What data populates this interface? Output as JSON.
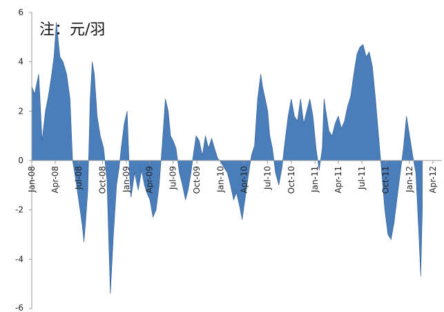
{
  "chart_data": {
    "type": "area",
    "title": "",
    "annotation": "注：元/羽",
    "xlabel": "",
    "ylabel": "",
    "ylim": [
      -6,
      6
    ],
    "yticks": [
      "6",
      "4",
      "2",
      "0",
      "-2",
      "-4",
      "-6"
    ],
    "xlim": [
      "2008-01",
      "2012-05"
    ],
    "xticks": [
      "Jan-08",
      "Apr-08",
      "Jul-08",
      "Oct-08",
      "Jan-09",
      "Apr-09",
      "Jul-09",
      "Oct-09",
      "Jan-10",
      "Apr-10",
      "Jul-10",
      "Oct-10",
      "Jan-11",
      "Apr-11",
      "Jul-11",
      "Oct-11",
      "Jan-12",
      "Apr-12"
    ],
    "grid": false,
    "legend": "none",
    "colors": {
      "fill": "#4a7ebb",
      "stroke": "#2f5a8f",
      "axis": "#999999"
    },
    "series": [
      {
        "x": [
          "2008-01-01",
          "2008-01-12",
          "2008-01-28",
          "2008-02-10",
          "2008-02-23",
          "2008-03-05",
          "2008-03-17",
          "2008-03-27",
          "2008-04-05",
          "2008-04-12",
          "2008-04-19",
          "2008-05-01",
          "2008-05-15",
          "2008-05-28",
          "2008-06-07",
          "2008-06-15",
          "2008-06-22",
          "2008-06-29",
          "2008-07-06",
          "2008-07-14",
          "2008-07-21",
          "2008-07-28",
          "2008-08-05",
          "2008-08-14",
          "2008-08-22",
          "2008-08-30",
          "2008-09-10",
          "2008-09-22",
          "2008-10-05",
          "2008-10-18",
          "2008-10-31",
          "2008-11-12",
          "2008-11-24",
          "2008-12-04",
          "2008-12-12",
          "2008-12-24",
          "2009-01-04",
          "2009-01-13",
          "2009-01-19",
          "2009-02-02",
          "2009-02-16",
          "2009-03-01",
          "2009-03-12",
          "2009-03-21",
          "2009-04-02",
          "2009-04-14",
          "2009-04-26",
          "2009-05-08",
          "2009-05-19",
          "2009-06-01",
          "2009-06-12",
          "2009-06-21",
          "2009-07-01",
          "2009-07-12",
          "2009-07-25",
          "2009-08-06",
          "2009-08-18",
          "2009-08-28",
          "2009-09-08",
          "2009-09-18",
          "2009-09-28",
          "2009-10-10",
          "2009-10-22",
          "2009-11-03",
          "2009-11-15",
          "2009-11-27",
          "2009-12-08",
          "2009-12-20",
          "2010-01-03",
          "2010-01-15",
          "2010-01-27",
          "2010-02-08",
          "2010-02-20",
          "2010-03-03",
          "2010-03-14",
          "2010-03-25",
          "2010-04-06",
          "2010-04-18",
          "2010-04-30",
          "2010-05-12",
          "2010-05-24",
          "2010-06-05",
          "2010-06-12",
          "2010-06-22",
          "2010-07-02",
          "2010-07-10",
          "2010-07-20",
          "2010-08-01",
          "2010-08-14",
          "2010-08-26",
          "2010-09-07",
          "2010-09-19",
          "2010-10-01",
          "2010-10-13",
          "2010-10-25",
          "2010-11-06",
          "2010-11-18",
          "2010-11-30",
          "2010-12-12",
          "2010-12-24",
          "2011-01-05",
          "2011-01-17",
          "2011-01-29",
          "2011-02-05",
          "2011-02-12",
          "2011-02-24",
          "2011-03-08",
          "2011-03-20",
          "2011-04-01",
          "2011-04-13",
          "2011-04-25",
          "2011-05-07",
          "2011-05-19",
          "2011-05-31",
          "2011-06-12",
          "2011-06-24",
          "2011-07-06",
          "2011-07-18",
          "2011-07-30",
          "2011-08-11",
          "2011-08-23",
          "2011-09-04",
          "2011-09-16",
          "2011-09-28",
          "2011-10-10",
          "2011-10-22",
          "2011-11-03",
          "2011-11-15",
          "2011-11-27",
          "2011-12-09",
          "2011-12-21",
          "2012-01-02",
          "2012-01-14",
          "2012-01-26",
          "2012-02-06",
          "2012-02-14",
          "2012-02-20"
        ],
        "values": [
          3.0,
          2.7,
          3.5,
          0.8,
          2.0,
          2.6,
          3.4,
          4.2,
          5.6,
          4.9,
          4.2,
          4.0,
          3.5,
          2.5,
          0.0,
          -0.5,
          -1.0,
          -1.5,
          -2.0,
          -2.6,
          -3.3,
          -2.4,
          -1.2,
          2.5,
          4.0,
          3.5,
          1.8,
          1.0,
          0.5,
          -0.8,
          -5.4,
          -3.0,
          -1.0,
          -0.3,
          0.5,
          1.5,
          2.0,
          -0.5,
          -1.5,
          -0.5,
          -1.2,
          -0.4,
          -1.0,
          -1.3,
          -1.6,
          -2.3,
          -2.0,
          -1.0,
          0.5,
          2.5,
          2.0,
          1.0,
          0.8,
          0.5,
          -0.5,
          -1.0,
          -1.6,
          -1.2,
          -0.5,
          0.3,
          1.0,
          0.8,
          0.2,
          1.0,
          0.5,
          0.9,
          0.5,
          0.1,
          -0.1,
          -0.3,
          -0.5,
          -1.0,
          -1.6,
          -1.3,
          -1.8,
          -2.4,
          -1.5,
          -0.6,
          0.2,
          0.6,
          2.5,
          3.5,
          3.0,
          2.5,
          2.0,
          1.0,
          0.5,
          -0.5,
          -1.0,
          -0.3,
          0.8,
          1.8,
          2.5,
          1.8,
          1.6,
          2.5,
          1.5,
          2.0,
          2.5,
          1.8,
          0.5,
          -0.4,
          0.5,
          2.5,
          2.0,
          1.2,
          1.0,
          1.5,
          1.8,
          1.3,
          1.6,
          2.2,
          2.6,
          3.5,
          4.3,
          4.6,
          4.7,
          4.2,
          4.4,
          3.8,
          2.5,
          1.0,
          -0.5,
          -2.0,
          -3.0,
          -3.2,
          -2.5,
          -1.5,
          -0.5,
          0.5,
          1.8,
          1.0,
          0.2,
          -0.5,
          -2.8,
          -4.7,
          -2.0
        ]
      }
    ]
  }
}
